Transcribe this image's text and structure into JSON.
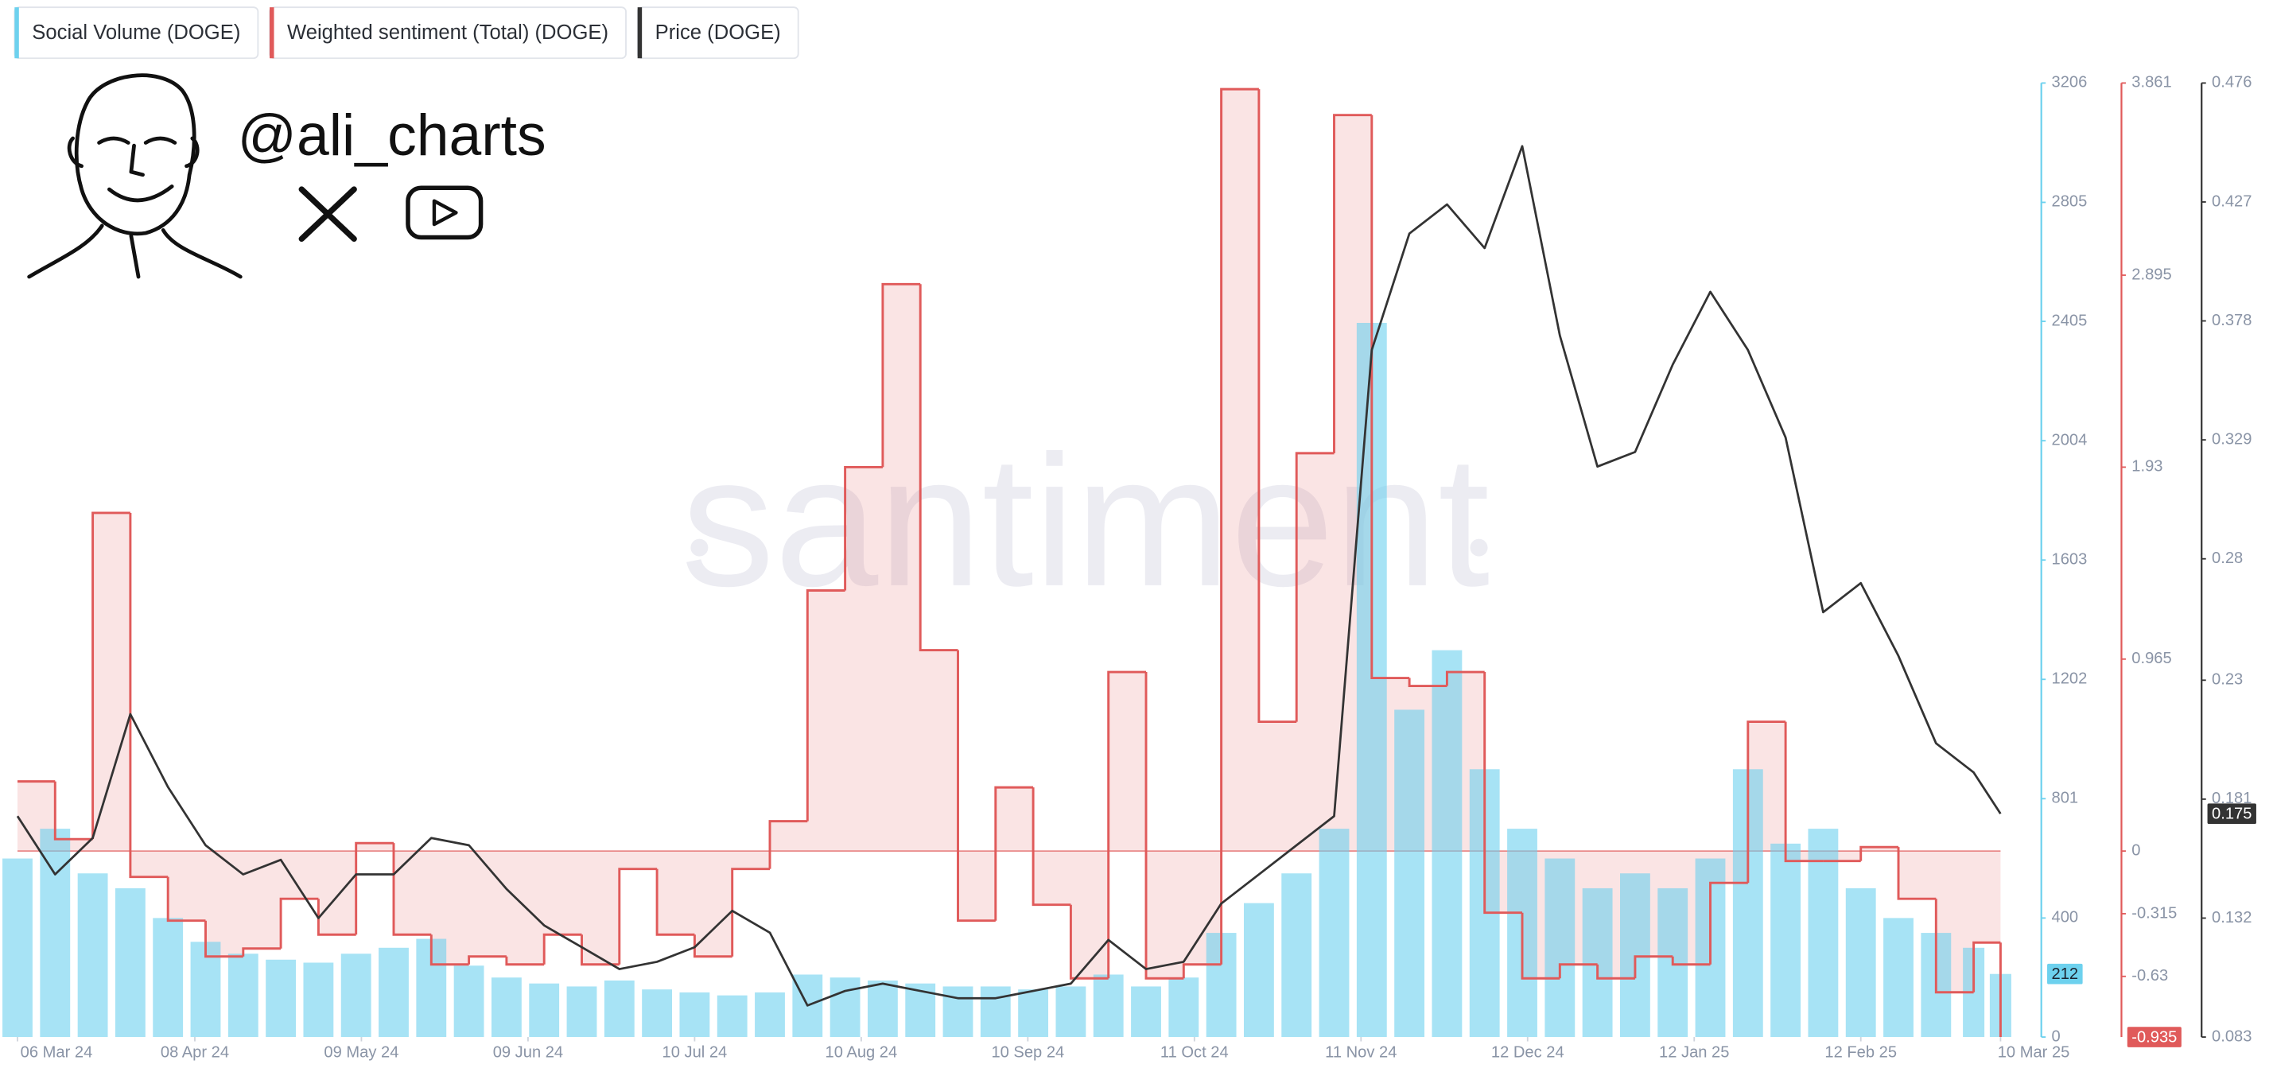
{
  "branding": {
    "handle": "@ali_charts"
  },
  "chart_data": {
    "type": "combo",
    "watermark": "santiment",
    "x": [
      "2024-03-06",
      "2024-03-13",
      "2024-03-20",
      "2024-03-27",
      "2024-04-03",
      "2024-04-10",
      "2024-04-17",
      "2024-04-24",
      "2024-05-01",
      "2024-05-08",
      "2024-05-15",
      "2024-05-22",
      "2024-05-29",
      "2024-06-05",
      "2024-06-12",
      "2024-06-19",
      "2024-06-26",
      "2024-07-03",
      "2024-07-10",
      "2024-07-17",
      "2024-07-24",
      "2024-07-31",
      "2024-08-07",
      "2024-08-14",
      "2024-08-21",
      "2024-08-28",
      "2024-09-04",
      "2024-09-11",
      "2024-09-18",
      "2024-09-25",
      "2024-10-02",
      "2024-10-09",
      "2024-10-16",
      "2024-10-23",
      "2024-10-30",
      "2024-11-06",
      "2024-11-13",
      "2024-11-20",
      "2024-11-27",
      "2024-12-04",
      "2024-12-11",
      "2024-12-18",
      "2024-12-25",
      "2025-01-01",
      "2025-01-08",
      "2025-01-15",
      "2025-01-22",
      "2025-01-29",
      "2025-02-05",
      "2025-02-12",
      "2025-02-19",
      "2025-02-26",
      "2025-03-05",
      "2025-03-10"
    ],
    "xlim": [
      "2024-03-06",
      "2025-03-10"
    ],
    "xticks": [
      {
        "value": "2024-03-06",
        "label": "06 Mar 24"
      },
      {
        "value": "2024-04-08",
        "label": "08 Apr 24"
      },
      {
        "value": "2024-05-09",
        "label": "09 May 24"
      },
      {
        "value": "2024-06-09",
        "label": "09 Jun 24"
      },
      {
        "value": "2024-07-10",
        "label": "10 Jul 24"
      },
      {
        "value": "2024-08-10",
        "label": "10 Aug 24"
      },
      {
        "value": "2024-09-10",
        "label": "10 Sep 24"
      },
      {
        "value": "2024-10-11",
        "label": "11 Oct 24"
      },
      {
        "value": "2024-11-11",
        "label": "11 Nov 24"
      },
      {
        "value": "2024-12-12",
        "label": "12 Dec 24"
      },
      {
        "value": "2025-01-12",
        "label": "12 Jan 25"
      },
      {
        "value": "2025-02-12",
        "label": "12 Feb 25"
      },
      {
        "value": "2025-03-10",
        "label": "10 Mar 25"
      }
    ],
    "ylim": [
      0,
      3206
    ],
    "yticks": [
      0,
      400,
      801,
      1202,
      1603,
      2004,
      2405,
      2805,
      3206
    ],
    "y2lim": [
      -0.935,
      3.861
    ],
    "y2ticks": [
      -0.63,
      -0.315,
      0,
      0.965,
      1.93,
      2.895,
      3.861
    ],
    "y3lim": [
      0.083,
      0.476
    ],
    "y3ticks": [
      0.083,
      0.132,
      0.181,
      0.23,
      0.28,
      0.329,
      0.378,
      0.427,
      0.476
    ],
    "series": [
      {
        "name": "Social Volume (DOGE)",
        "type": "bar",
        "color": "#6dd1ee",
        "values": [
          600,
          700,
          550,
          500,
          400,
          320,
          280,
          260,
          250,
          280,
          300,
          330,
          240,
          200,
          180,
          170,
          190,
          160,
          150,
          140,
          150,
          210,
          200,
          190,
          180,
          170,
          170,
          160,
          170,
          210,
          170,
          200,
          350,
          450,
          550,
          700,
          2400,
          1100,
          1300,
          900,
          700,
          600,
          500,
          550,
          500,
          600,
          900,
          650,
          700,
          500,
          400,
          350,
          300,
          212
        ]
      },
      {
        "name": "Weighted sentiment (Total) (DOGE)",
        "type": "step",
        "axis": "y2",
        "color": "#e05a5a",
        "values": [
          0.35,
          0.06,
          1.7,
          -0.13,
          -0.35,
          -0.53,
          -0.49,
          -0.24,
          -0.42,
          0.04,
          -0.42,
          -0.57,
          -0.53,
          -0.57,
          -0.42,
          -0.57,
          -0.09,
          -0.42,
          -0.53,
          -0.09,
          0.15,
          1.31,
          1.93,
          2.85,
          1.01,
          -0.35,
          0.32,
          -0.27,
          -0.64,
          0.9,
          -0.64,
          -0.57,
          3.83,
          0.65,
          2.0,
          3.7,
          0.87,
          0.83,
          0.9,
          -0.31,
          -0.64,
          -0.57,
          -0.64,
          -0.53,
          -0.57,
          -0.16,
          0.65,
          -0.05,
          -0.05,
          0.02,
          -0.24,
          -0.71,
          -0.46,
          -0.935
        ]
      },
      {
        "name": "Price (DOGE)",
        "type": "line",
        "axis": "y3",
        "color": "#333333",
        "values": [
          0.174,
          0.15,
          0.165,
          0.216,
          0.186,
          0.162,
          0.15,
          0.156,
          0.132,
          0.15,
          0.15,
          0.165,
          0.162,
          0.144,
          0.129,
          0.12,
          0.111,
          0.114,
          0.12,
          0.135,
          0.126,
          0.096,
          0.102,
          0.105,
          0.102,
          0.099,
          0.099,
          0.102,
          0.105,
          0.123,
          0.111,
          0.114,
          0.138,
          0.15,
          0.162,
          0.174,
          0.366,
          0.414,
          0.426,
          0.408,
          0.45,
          0.372,
          0.318,
          0.324,
          0.36,
          0.39,
          0.366,
          0.33,
          0.258,
          0.27,
          0.24,
          0.204,
          0.192,
          0.175
        ]
      }
    ]
  }
}
